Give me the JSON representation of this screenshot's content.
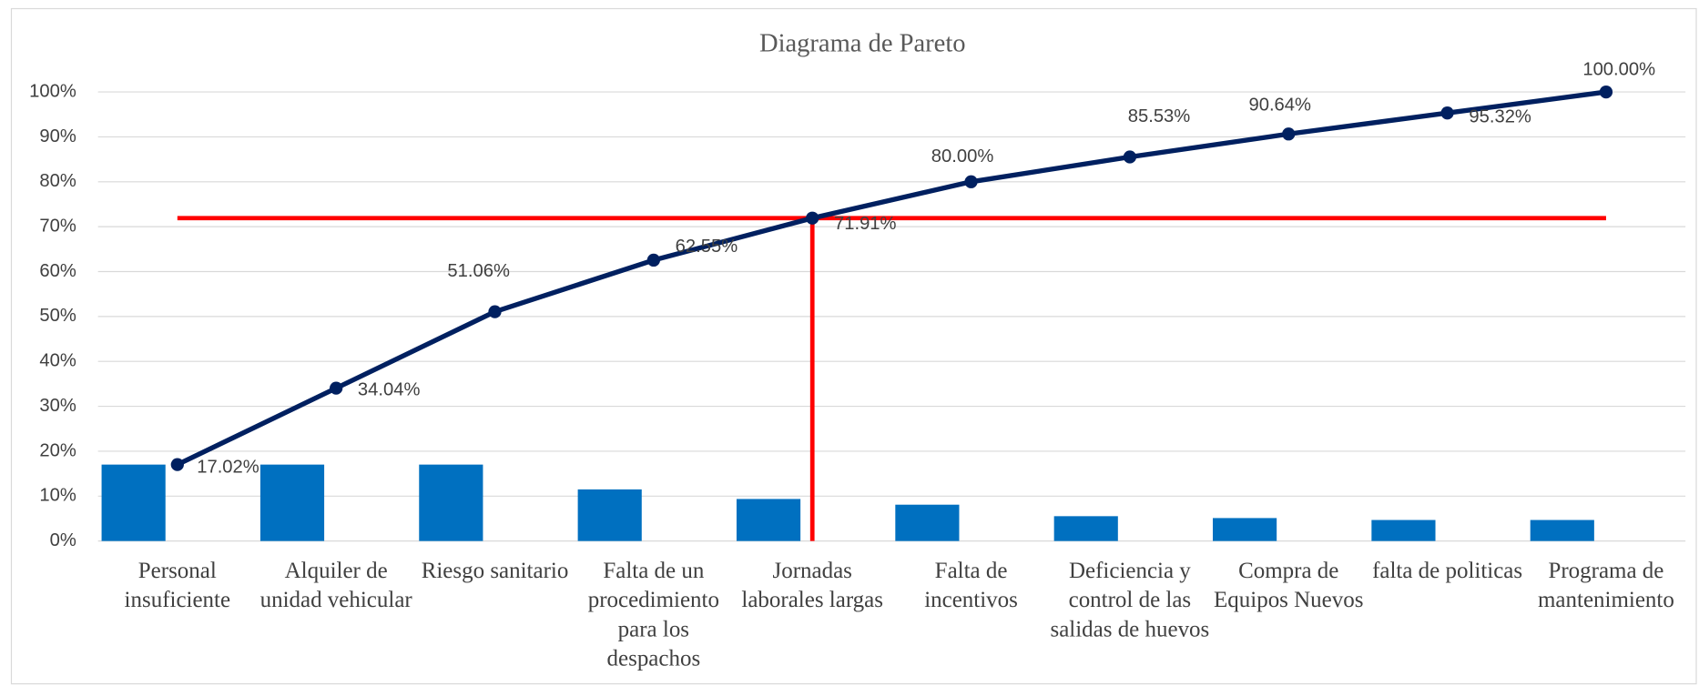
{
  "chart_data": {
    "type": "pareto",
    "title": "Diagrama de Pareto",
    "categories": [
      "Personal insuficiente",
      "Alquiler de unidad vehicular",
      "Riesgo sanitario",
      "Falta de un procedimiento para los despachos",
      "Jornadas laborales largas",
      "Falta de incentivos",
      "Deficiencia y control de las salidas de huevos",
      "Compra de Equipos Nuevos",
      "falta de politicas",
      "Programa de mantenimiento"
    ],
    "series": [
      {
        "type": "bar",
        "color": "#0070c0",
        "values": [
          17.02,
          17.02,
          17.02,
          11.49,
          9.36,
          8.09,
          5.53,
          5.11,
          4.68,
          4.68
        ]
      },
      {
        "type": "line",
        "color": "#002060",
        "values": [
          17.02,
          34.04,
          51.06,
          62.55,
          71.91,
          80.0,
          85.53,
          90.64,
          95.32,
          100.0
        ],
        "value_labels": [
          "17.02%",
          "34.04%",
          "51.06%",
          "62.55%",
          "71.91%",
          "80.00%",
          "85.53%",
          "90.64%",
          "95.32%",
          "100.00%"
        ]
      }
    ],
    "threshold": 71.91,
    "threshold_color": "#ff0000",
    "ylim": [
      0,
      100
    ],
    "yticks": [
      {
        "value": 0,
        "label": "0%"
      },
      {
        "value": 10,
        "label": "10%"
      },
      {
        "value": 20,
        "label": "20%"
      },
      {
        "value": 30,
        "label": "30%"
      },
      {
        "value": 40,
        "label": "40%"
      },
      {
        "value": 50,
        "label": "50%"
      },
      {
        "value": 60,
        "label": "60%"
      },
      {
        "value": 70,
        "label": "70%"
      },
      {
        "value": 80,
        "label": "80%"
      },
      {
        "value": 90,
        "label": "90%"
      },
      {
        "value": 100,
        "label": "100%"
      }
    ],
    "grid": true
  }
}
